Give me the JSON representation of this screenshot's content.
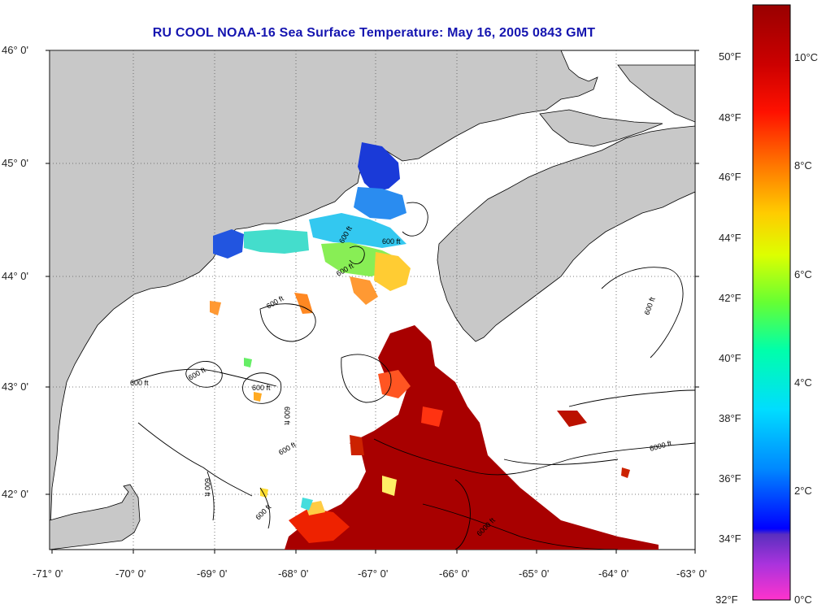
{
  "title": "RU COOL  NOAA-16  Sea Surface Temperature:  May 16, 2005 0843 GMT",
  "map": {
    "lat_ticks": [
      "46° 0'",
      "45° 0'",
      "44° 0'",
      "43° 0'",
      "42° 0'"
    ],
    "lon_ticks": [
      "-71° 0'",
      "-70° 0'",
      "-69° 0'",
      "-68° 0'",
      "-67° 0'",
      "-66° 0'",
      "-65° 0'",
      "-64° 0'",
      "-63° 0'"
    ],
    "lat_range": [
      41.5,
      46.0
    ],
    "lon_range": [
      -71.0,
      -63.0
    ],
    "contour_labels": [
      "600 ft",
      "600 ft",
      "600 ft",
      "600 ft",
      "600 ft",
      "600 ft",
      "600 ft",
      "600 ft",
      "600 ft",
      "600 ft",
      "600 ft",
      "600 ft",
      "6000 ft",
      "6000 ft"
    ],
    "colors": {
      "land": "#c8c8c8",
      "ocean_nodata": "#ffffff",
      "coast": "#000000",
      "grid": "#333333"
    }
  },
  "colorbar": {
    "fahrenheit_labels": [
      "50°F",
      "48°F",
      "46°F",
      "44°F",
      "42°F",
      "40°F",
      "38°F",
      "36°F",
      "34°F",
      "32°F"
    ],
    "celsius_labels": [
      "10°C",
      "8°C",
      "6°C",
      "4°C",
      "2°C",
      "0°C"
    ],
    "range_f": [
      32,
      52
    ]
  }
}
